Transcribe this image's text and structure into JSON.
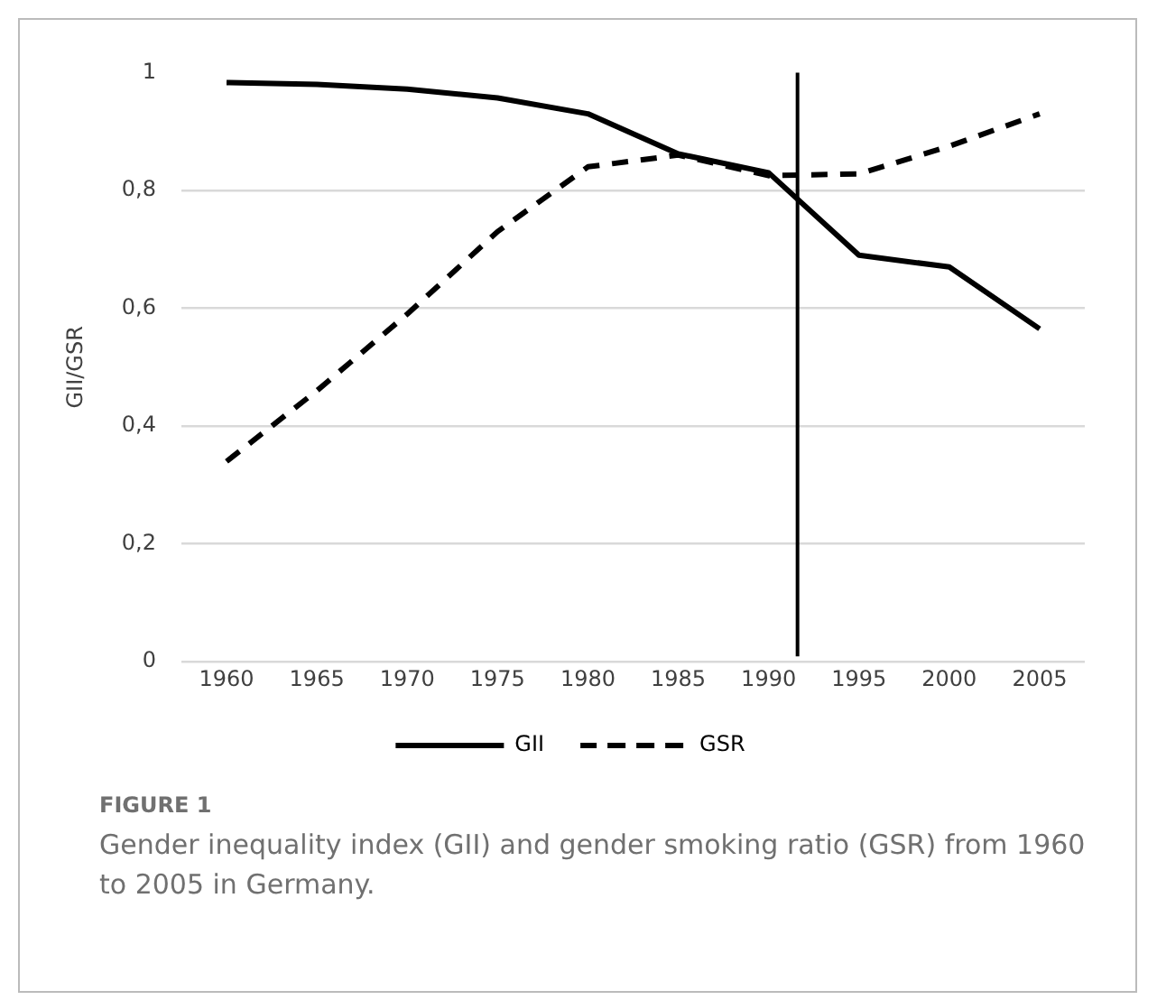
{
  "chart_data": {
    "type": "line",
    "ylabel": "GII/GSR",
    "x": [
      1960,
      1965,
      1970,
      1975,
      1980,
      1985,
      1990,
      1995,
      2000,
      2005
    ],
    "xlim": [
      1957.5,
      2007.5
    ],
    "xticks": [
      1960,
      1965,
      1970,
      1975,
      1980,
      1985,
      1990,
      1995,
      2000,
      2005
    ],
    "ylim": [
      0,
      1
    ],
    "yticks": [
      0,
      {
        "value": 0.2,
        "label": "0,2"
      },
      {
        "value": 0.4,
        "label": "0,4"
      },
      {
        "value": 0.6,
        "label": "0,6"
      },
      {
        "value": 0.8,
        "label": "0,8"
      },
      1
    ],
    "grid": "y",
    "legend": "bottom",
    "marker": "none",
    "series": [
      {
        "name": "GII",
        "color": "#000000",
        "line_style": "solid",
        "values": [
          0.983,
          0.98,
          0.972,
          0.957,
          0.93,
          0.862,
          0.83,
          0.69,
          0.67,
          0.565
        ]
      },
      {
        "name": "GSR",
        "color": "#000000",
        "line_style": "dashed",
        "values": [
          0.34,
          0.46,
          0.59,
          0.73,
          0.84,
          0.86,
          0.825,
          0.828,
          0.875,
          0.93
        ]
      }
    ],
    "ref_lines": [
      {
        "axis": "x",
        "value": 1991.6,
        "color": "#000000",
        "line_style": "solid"
      }
    ],
    "annotations": [
      "FIGURE 1",
      "Gender inequality index (GII) and gender smoking ratio (GSR) from 1960 to 2005 in Germany."
    ]
  }
}
